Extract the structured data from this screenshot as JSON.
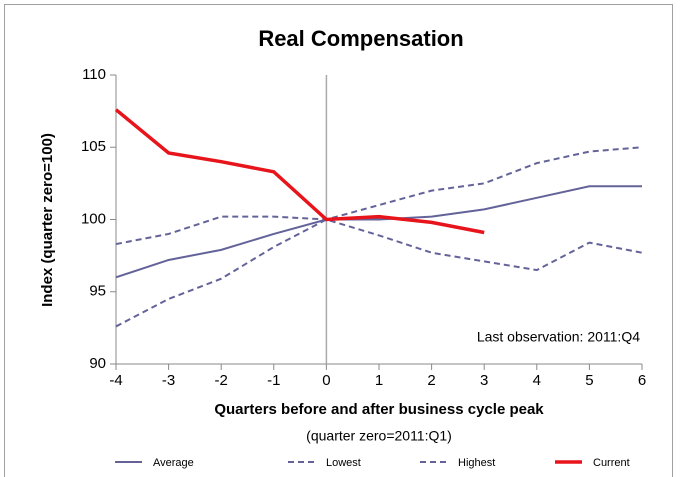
{
  "chart_data": {
    "type": "line",
    "title": "Real Compensation",
    "x_label": "Quarters before and after business cycle peak",
    "subtitle": "(quarter zero=2011:Q1)",
    "y_label": "Index (quarter zero=100)",
    "annotation": "Last observation: 2011:Q4",
    "x": [
      -4,
      -3,
      -2,
      -1,
      0,
      1,
      2,
      3,
      4,
      5,
      6
    ],
    "xlim": [
      -4,
      6
    ],
    "xticks": [
      -4,
      -3,
      -2,
      -1,
      0,
      1,
      2,
      3,
      4,
      5,
      6
    ],
    "ylim": [
      90,
      110
    ],
    "yticks": [
      90,
      95,
      100,
      105,
      110
    ],
    "series": [
      {
        "name": "Average",
        "color": "#63639a",
        "dash": false,
        "values": [
          96.0,
          97.2,
          97.9,
          99.0,
          100,
          100,
          100.2,
          100.7,
          101.5,
          102.3,
          102.3
        ]
      },
      {
        "name": "Lowest",
        "color": "#63639a",
        "dash": true,
        "values": [
          92.6,
          94.5,
          95.9,
          98.1,
          100,
          98.9,
          97.7,
          97.1,
          96.5,
          98.4,
          97.7
        ]
      },
      {
        "name": "Highest",
        "color": "#63639a",
        "dash": true,
        "values": [
          98.3,
          99.0,
          100.2,
          100.2,
          100,
          101.0,
          102.0,
          102.5,
          103.9,
          104.7,
          105.0
        ]
      },
      {
        "name": "Current",
        "color": "#e8141b",
        "dash": false,
        "values": [
          107.6,
          104.6,
          104.0,
          103.3,
          100,
          100.2,
          99.8,
          99.1,
          null,
          null,
          null
        ]
      }
    ]
  }
}
